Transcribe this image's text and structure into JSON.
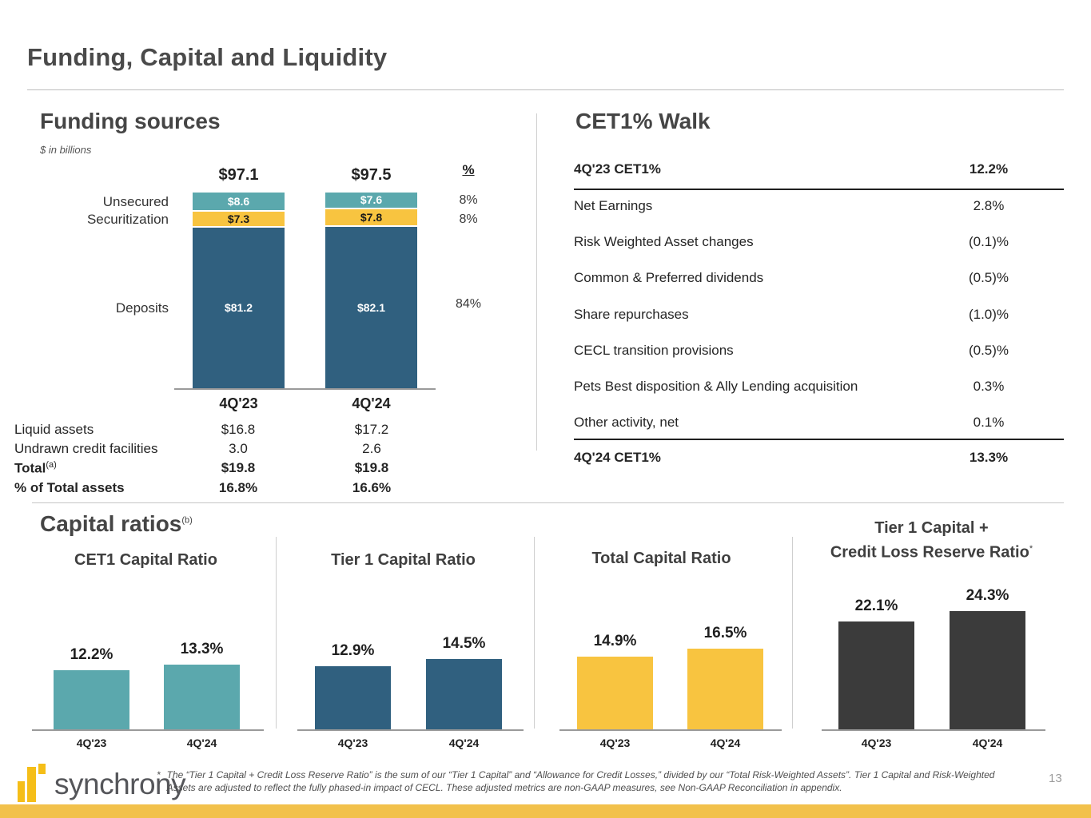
{
  "slide": {
    "title": "Funding, Capital and Liquidity",
    "page_number": "13"
  },
  "colors": {
    "teal": "#5ba8ad",
    "blue": "#30607f",
    "yellow": "#f8c440",
    "dark_gray": "#3b3b3b",
    "logo_yellow": "#f5be18",
    "bottom_strip": "#f2c14b"
  },
  "funding": {
    "heading": "Funding sources",
    "subtitle": "$ in billions",
    "percent_header": "%",
    "columns": [
      "4Q'23",
      "4Q'24"
    ],
    "totals": [
      "$97.1",
      "$97.5"
    ],
    "total_values": [
      97.1,
      97.5
    ],
    "rows": [
      {
        "name": "Unsecured",
        "values": [
          8.6,
          7.6
        ],
        "labels": [
          "$8.6",
          "$7.6"
        ],
        "pct": "8%",
        "color": "#5ba8ad",
        "text_color": "#ffffff"
      },
      {
        "name": "Securitization",
        "values": [
          7.3,
          7.8
        ],
        "labels": [
          "$7.3",
          "$7.8"
        ],
        "pct": "8%",
        "color": "#f8c440",
        "text_color": "#1a1a1a"
      },
      {
        "name": "Deposits",
        "values": [
          81.2,
          82.1
        ],
        "labels": [
          "$81.2",
          "$82.1"
        ],
        "pct": "84%",
        "color": "#30607f",
        "text_color": "#ffffff"
      }
    ],
    "liquidity_rows": [
      {
        "label": "Liquid assets",
        "sup": "",
        "values": [
          "$16.8",
          "$17.2"
        ],
        "bold": false
      },
      {
        "label": "Undrawn credit facilities",
        "sup": "",
        "values": [
          "3.0",
          "2.6"
        ],
        "bold": false
      },
      {
        "label": "Total",
        "sup": "(a)",
        "values": [
          "$19.8",
          "$19.8"
        ],
        "bold": true
      },
      {
        "label": "% of Total assets",
        "sup": "",
        "values": [
          "16.8%",
          "16.6%"
        ],
        "bold": true
      }
    ]
  },
  "cet1_walk": {
    "heading": "CET1% Walk",
    "rows": [
      {
        "label": "4Q'23 CET1%",
        "value": "12.2%",
        "bold": true
      },
      {
        "label": "Net Earnings",
        "value": "2.8%",
        "bold": false
      },
      {
        "label": "Risk Weighted Asset changes",
        "value": "(0.1)%",
        "bold": false
      },
      {
        "label": "Common & Preferred dividends",
        "value": "(0.5)%",
        "bold": false
      },
      {
        "label": "Share repurchases",
        "value": "(1.0)%",
        "bold": false
      },
      {
        "label": "CECL transition provisions",
        "value": "(0.5)%",
        "bold": false
      },
      {
        "label": "Pets Best disposition & Ally Lending acquisition",
        "value": "0.3%",
        "bold": false
      },
      {
        "label": "Other activity, net",
        "value": "0.1%",
        "bold": false
      },
      {
        "label": "4Q'24 CET1%",
        "value": "13.3%",
        "bold": true
      }
    ]
  },
  "capital_ratios": {
    "heading": "Capital ratios",
    "sup": "(b)",
    "charts": [
      {
        "title_line1": "CET1 Capital Ratio",
        "title_line2": "",
        "sup": "",
        "color": "#5ba8ad",
        "categories": [
          "4Q'23",
          "4Q'24"
        ],
        "values": [
          12.2,
          13.3
        ],
        "labels": [
          "12.2%",
          "13.3%"
        ]
      },
      {
        "title_line1": "Tier 1 Capital Ratio",
        "title_line2": "",
        "sup": "",
        "color": "#30607f",
        "categories": [
          "4Q'23",
          "4Q'24"
        ],
        "values": [
          12.9,
          14.5
        ],
        "labels": [
          "12.9%",
          "14.5%"
        ]
      },
      {
        "title_line1": "Total Capital Ratio",
        "title_line2": "",
        "sup": "",
        "color": "#f8c440",
        "categories": [
          "4Q'23",
          "4Q'24"
        ],
        "values": [
          14.9,
          16.5
        ],
        "labels": [
          "14.9%",
          "16.5%"
        ]
      },
      {
        "title_line1": "Tier 1 Capital +",
        "title_line2": "Credit Loss Reserve Ratio",
        "sup": "*",
        "color": "#3b3b3b",
        "categories": [
          "4Q'23",
          "4Q'24"
        ],
        "values": [
          22.1,
          24.3
        ],
        "labels": [
          "22.1%",
          "24.3%"
        ]
      }
    ]
  },
  "footer": {
    "logo_text": "synchrony",
    "footnote_mark": "*",
    "footnote_line1": "The “Tier 1 Capital + Credit Loss Reserve Ratio” is the sum of our “Tier 1 Capital” and “Allowance for Credit Losses,” divided by our “Total Risk-Weighted Assets”. Tier 1 Capital and Risk-Weighted",
    "footnote_line2": "Assets are adjusted to reflect the fully phased-in impact of CECL. These adjusted metrics are non-GAAP measures, see Non-GAAP Reconciliation in appendix."
  },
  "chart_data": [
    {
      "type": "bar",
      "subtype": "stacked",
      "title": "Funding sources",
      "units": "$ in billions",
      "categories": [
        "4Q'23",
        "4Q'24"
      ],
      "series": [
        {
          "name": "Unsecured",
          "values": [
            8.6,
            7.6
          ],
          "share_of_total": "8%"
        },
        {
          "name": "Securitization",
          "values": [
            7.3,
            7.8
          ],
          "share_of_total": "8%"
        },
        {
          "name": "Deposits",
          "values": [
            81.2,
            82.1
          ],
          "share_of_total": "84%"
        }
      ],
      "totals": [
        97.1,
        97.5
      ],
      "annotations": [
        "$97.1",
        "$97.5"
      ],
      "legend_position": "left",
      "grid": false
    },
    {
      "type": "table",
      "title": "Funding sources — liquidity detail",
      "columns": [
        "",
        "4Q'23",
        "4Q'24"
      ],
      "rows": [
        [
          "Liquid assets",
          "$16.8",
          "$17.2"
        ],
        [
          "Undrawn credit facilities",
          "3.0",
          "2.6"
        ],
        [
          "Total (a)",
          "$19.8",
          "$19.8"
        ],
        [
          "% of Total assets",
          "16.8%",
          "16.6%"
        ]
      ]
    },
    {
      "type": "table",
      "title": "CET1% Walk",
      "rows": [
        [
          "4Q'23 CET1%",
          "12.2%"
        ],
        [
          "Net Earnings",
          "2.8%"
        ],
        [
          "Risk Weighted Asset changes",
          "(0.1)%"
        ],
        [
          "Common & Preferred dividends",
          "(0.5)%"
        ],
        [
          "Share repurchases",
          "(1.0)%"
        ],
        [
          "CECL transition provisions",
          "(0.5)%"
        ],
        [
          "Pets Best disposition & Ally Lending acquisition",
          "0.3%"
        ],
        [
          "Other activity, net",
          "0.1%"
        ],
        [
          "4Q'24 CET1%",
          "13.3%"
        ]
      ]
    },
    {
      "type": "bar",
      "title": "CET1 Capital Ratio",
      "categories": [
        "4Q'23",
        "4Q'24"
      ],
      "values": [
        12.2,
        13.3
      ],
      "labels": [
        "12.2%",
        "13.3%"
      ],
      "grid": false
    },
    {
      "type": "bar",
      "title": "Tier 1 Capital Ratio",
      "categories": [
        "4Q'23",
        "4Q'24"
      ],
      "values": [
        12.9,
        14.5
      ],
      "labels": [
        "12.9%",
        "14.5%"
      ],
      "grid": false
    },
    {
      "type": "bar",
      "title": "Total Capital Ratio",
      "categories": [
        "4Q'23",
        "4Q'24"
      ],
      "values": [
        14.9,
        16.5
      ],
      "labels": [
        "14.9%",
        "16.5%"
      ],
      "grid": false
    },
    {
      "type": "bar",
      "title": "Tier 1 Capital + Credit Loss Reserve Ratio*",
      "categories": [
        "4Q'23",
        "4Q'24"
      ],
      "values": [
        22.1,
        24.3
      ],
      "labels": [
        "22.1%",
        "24.3%"
      ],
      "grid": false
    }
  ]
}
